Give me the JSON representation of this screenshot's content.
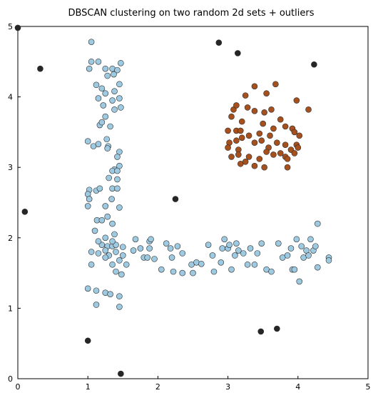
{
  "chart_data": {
    "type": "scatter",
    "title": "DBSCAN clustering on two random 2d sets + outliers",
    "xlabel": "",
    "ylabel": "",
    "xlim": [
      0,
      5
    ],
    "ylim": [
      0,
      5
    ],
    "xticks": [
      "0",
      "1",
      "2",
      "3",
      "4",
      "5"
    ],
    "yticks": [
      "0",
      "1",
      "2",
      "3",
      "4",
      "5"
    ],
    "grid": false,
    "legend": "none",
    "series": [
      {
        "color": "#9ecae1",
        "points": [
          [
            1.05,
            4.78
          ],
          [
            1.02,
            4.4
          ],
          [
            1.05,
            4.5
          ],
          [
            1.15,
            4.5
          ],
          [
            1.25,
            4.4
          ],
          [
            1.35,
            4.4
          ],
          [
            1.42,
            4.38
          ],
          [
            1.47,
            4.48
          ],
          [
            1.37,
            4.32
          ],
          [
            1.28,
            4.3
          ],
          [
            1.12,
            4.17
          ],
          [
            1.2,
            4.12
          ],
          [
            1.45,
            4.18
          ],
          [
            1.25,
            4.05
          ],
          [
            1.38,
            4.08
          ],
          [
            1.15,
            3.98
          ],
          [
            1.35,
            3.95
          ],
          [
            1.45,
            3.98
          ],
          [
            1.22,
            3.88
          ],
          [
            1.47,
            3.85
          ],
          [
            1.38,
            3.82
          ],
          [
            1.25,
            3.72
          ],
          [
            1.17,
            3.6
          ],
          [
            1.32,
            3.58
          ],
          [
            1.2,
            3.64
          ],
          [
            1.0,
            3.37
          ],
          [
            1.08,
            3.3
          ],
          [
            1.15,
            3.33
          ],
          [
            1.27,
            3.4
          ],
          [
            1.29,
            3.3
          ],
          [
            1.28,
            3.27
          ],
          [
            1.45,
            3.22
          ],
          [
            1.42,
            3.15
          ],
          [
            1.45,
            3.02
          ],
          [
            1.38,
            2.97
          ],
          [
            1.35,
            2.95
          ],
          [
            1.42,
            2.95
          ],
          [
            1.3,
            2.85
          ],
          [
            1.42,
            2.83
          ],
          [
            1.35,
            2.7
          ],
          [
            1.02,
            2.68
          ],
          [
            1.12,
            2.67
          ],
          [
            1.17,
            2.7
          ],
          [
            1.42,
            2.7
          ],
          [
            1.0,
            2.62
          ],
          [
            1.02,
            2.55
          ],
          [
            1.34,
            2.55
          ],
          [
            1.25,
            2.45
          ],
          [
            1.0,
            2.45
          ],
          [
            1.45,
            2.43
          ],
          [
            1.28,
            2.3
          ],
          [
            1.13,
            2.25
          ],
          [
            1.2,
            2.25
          ],
          [
            1.35,
            2.2
          ],
          [
            1.1,
            2.1
          ],
          [
            1.38,
            2.05
          ],
          [
            1.25,
            2.0
          ],
          [
            1.2,
            1.9
          ],
          [
            1.28,
            1.88
          ],
          [
            1.35,
            1.88
          ],
          [
            1.4,
            1.9
          ],
          [
            1.5,
            1.87
          ],
          [
            1.15,
            1.95
          ],
          [
            1.35,
            1.95
          ],
          [
            1.05,
            1.8
          ],
          [
            1.15,
            1.78
          ],
          [
            1.25,
            1.82
          ],
          [
            1.3,
            1.75
          ],
          [
            1.4,
            1.8
          ],
          [
            1.5,
            1.75
          ],
          [
            1.45,
            1.68
          ],
          [
            1.25,
            1.72
          ],
          [
            1.05,
            1.62
          ],
          [
            1.35,
            1.62
          ],
          [
            1.4,
            1.52
          ],
          [
            1.48,
            1.48
          ],
          [
            1.55,
            1.62
          ],
          [
            1.68,
            1.98
          ],
          [
            1.65,
            1.82
          ],
          [
            1.75,
            1.85
          ],
          [
            1.8,
            1.72
          ],
          [
            1.85,
            1.72
          ],
          [
            1.88,
            1.95
          ],
          [
            1.9,
            1.98
          ],
          [
            1.88,
            1.85
          ],
          [
            1.95,
            1.7
          ],
          [
            2.05,
            1.55
          ],
          [
            2.12,
            1.92
          ],
          [
            2.18,
            1.85
          ],
          [
            2.2,
            1.72
          ],
          [
            2.22,
            1.52
          ],
          [
            2.28,
            1.88
          ],
          [
            2.35,
            1.78
          ],
          [
            2.35,
            1.5
          ],
          [
            2.48,
            1.62
          ],
          [
            2.5,
            1.5
          ],
          [
            2.55,
            1.65
          ],
          [
            2.62,
            1.63
          ],
          [
            2.72,
            1.9
          ],
          [
            2.78,
            1.75
          ],
          [
            2.8,
            1.52
          ],
          [
            2.9,
            1.65
          ],
          [
            2.92,
            1.85
          ],
          [
            2.95,
            1.98
          ],
          [
            3.0,
            1.85
          ],
          [
            3.02,
            1.9
          ],
          [
            3.05,
            1.55
          ],
          [
            3.1,
            1.75
          ],
          [
            3.12,
            1.92
          ],
          [
            3.15,
            1.82
          ],
          [
            3.22,
            1.78
          ],
          [
            3.28,
            1.62
          ],
          [
            3.32,
            1.85
          ],
          [
            3.38,
            1.62
          ],
          [
            3.42,
            1.78
          ],
          [
            3.48,
            1.92
          ],
          [
            3.55,
            1.55
          ],
          [
            3.62,
            1.52
          ],
          [
            3.72,
            1.92
          ],
          [
            3.78,
            1.72
          ],
          [
            3.85,
            1.75
          ],
          [
            3.9,
            1.85
          ],
          [
            3.92,
            1.55
          ],
          [
            3.95,
            1.55
          ],
          [
            3.98,
            1.98
          ],
          [
            4.05,
            1.88
          ],
          [
            4.08,
            1.72
          ],
          [
            4.12,
            1.82
          ],
          [
            4.15,
            1.75
          ],
          [
            4.18,
            1.98
          ],
          [
            4.22,
            1.82
          ],
          [
            4.25,
            1.88
          ],
          [
            4.02,
            1.38
          ],
          [
            4.28,
            1.58
          ],
          [
            4.28,
            2.2
          ],
          [
            4.44,
            1.72
          ],
          [
            4.44,
            1.68
          ],
          [
            1.0,
            1.28
          ],
          [
            1.12,
            1.25
          ],
          [
            1.25,
            1.22
          ],
          [
            1.32,
            1.2
          ],
          [
            1.45,
            1.17
          ],
          [
            1.12,
            1.05
          ],
          [
            1.45,
            1.02
          ]
        ]
      },
      {
        "color": "#a6501e",
        "points": [
          [
            3.38,
            4.15
          ],
          [
            3.68,
            4.18
          ],
          [
            3.25,
            4.02
          ],
          [
            3.55,
            4.05
          ],
          [
            3.08,
            3.82
          ],
          [
            3.12,
            3.88
          ],
          [
            3.28,
            3.85
          ],
          [
            3.38,
            3.8
          ],
          [
            3.52,
            3.78
          ],
          [
            3.62,
            3.82
          ],
          [
            3.98,
            3.95
          ],
          [
            4.15,
            3.82
          ],
          [
            3.05,
            3.72
          ],
          [
            3.2,
            3.65
          ],
          [
            3.5,
            3.62
          ],
          [
            3.65,
            3.55
          ],
          [
            3.75,
            3.68
          ],
          [
            3.82,
            3.58
          ],
          [
            3.45,
            3.48
          ],
          [
            3.6,
            3.45
          ],
          [
            3.0,
            3.52
          ],
          [
            3.12,
            3.52
          ],
          [
            3.2,
            3.42
          ],
          [
            3.3,
            3.45
          ],
          [
            3.18,
            3.52
          ],
          [
            3.92,
            3.55
          ],
          [
            3.95,
            3.5
          ],
          [
            4.02,
            3.45
          ],
          [
            3.02,
            3.35
          ],
          [
            3.12,
            3.38
          ],
          [
            3.38,
            3.35
          ],
          [
            3.48,
            3.38
          ],
          [
            3.58,
            3.28
          ],
          [
            3.7,
            3.35
          ],
          [
            3.82,
            3.32
          ],
          [
            3.98,
            3.32
          ],
          [
            4.0,
            3.28
          ],
          [
            3.0,
            3.28
          ],
          [
            3.15,
            3.25
          ],
          [
            3.55,
            3.22
          ],
          [
            3.65,
            3.18
          ],
          [
            3.75,
            3.2
          ],
          [
            3.9,
            3.25
          ],
          [
            3.95,
            3.2
          ],
          [
            3.05,
            3.15
          ],
          [
            3.15,
            3.18
          ],
          [
            3.3,
            3.15
          ],
          [
            3.45,
            3.12
          ],
          [
            3.82,
            3.15
          ],
          [
            3.85,
            3.12
          ],
          [
            3.18,
            3.05
          ],
          [
            3.25,
            3.08
          ],
          [
            3.38,
            3.02
          ],
          [
            3.52,
            3.0
          ],
          [
            3.85,
            3.0
          ]
        ]
      },
      {
        "color": "#262626",
        "points": [
          [
            0.0,
            4.98
          ],
          [
            0.32,
            4.4
          ],
          [
            2.87,
            4.77
          ],
          [
            3.14,
            4.62
          ],
          [
            4.23,
            4.46
          ],
          [
            2.25,
            2.55
          ],
          [
            0.1,
            2.37
          ],
          [
            1.0,
            0.54
          ],
          [
            3.47,
            0.67
          ],
          [
            3.7,
            0.71
          ],
          [
            1.47,
            0.07
          ]
        ]
      }
    ]
  }
}
